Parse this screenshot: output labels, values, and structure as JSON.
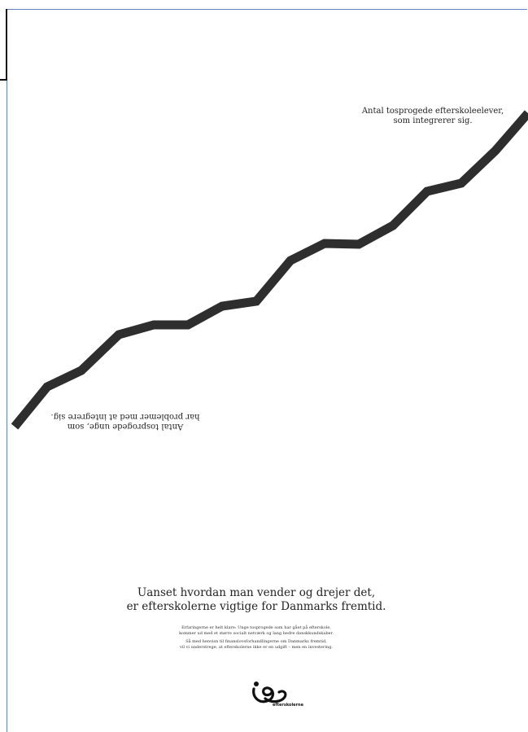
{
  "ad": {
    "line_label_top": [
      "Antal tosprogede efterskoleelever,",
      "som integrerer sig."
    ],
    "line_label_bottom_inverted": [
      "Antal tosprogede unge, som",
      "har problemer med at integrere sig."
    ],
    "headline": [
      "Uanset hvordan man vender og drejer det,",
      "er efterskolerne vigtige for Danmarks fremtid."
    ],
    "body_paragraphs": [
      [
        "Erfaringerne er helt klare: Unge tosprogede som har gået på efterskole,",
        "kommer ud med et større socialt netværk og lang bedre danskkundskaber."
      ],
      [
        "Så med henvisn til finanslovsforhandlingerne om Danmarks fremtid,",
        "vil vi understrege, at efterskolerne ikke er en udgift – men en investering."
      ]
    ],
    "logo_text": "efterskolerne",
    "line_color": "#2e2e2e",
    "frame_color": "#5b86c2"
  },
  "line_points": [
    [
      18,
      524
    ],
    [
      58,
      475
    ],
    [
      100,
      455
    ],
    [
      146,
      411
    ],
    [
      189,
      399
    ],
    [
      231,
      399
    ],
    [
      273,
      376
    ],
    [
      315,
      370
    ],
    [
      357,
      320
    ],
    [
      399,
      299
    ],
    [
      441,
      300
    ],
    [
      483,
      277
    ],
    [
      525,
      235
    ],
    [
      567,
      225
    ],
    [
      609,
      185
    ],
    [
      649,
      139
    ]
  ]
}
